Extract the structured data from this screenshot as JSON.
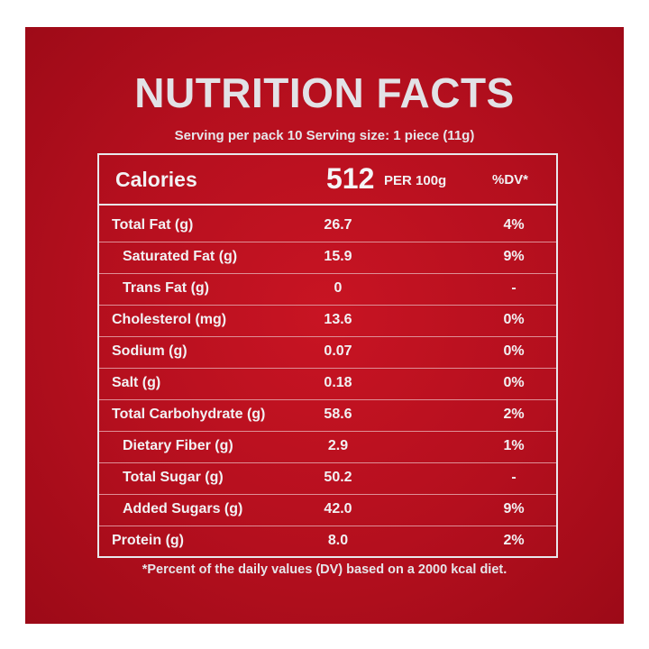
{
  "title": "NUTRITION FACTS",
  "serving": "Serving per pack 10 Serving size: 1 piece (11g)",
  "calories": {
    "label": "Calories",
    "value": "512",
    "unit": "PER 100g",
    "dv_header": "%DV*"
  },
  "rows": [
    {
      "name": "Total Fat (g)",
      "amount": "26.7",
      "dv": "4%"
    },
    {
      "name": "Saturated Fat (g)",
      "amount": "15.9",
      "dv": "9%"
    },
    {
      "name": "Trans Fat (g)",
      "amount": "0",
      "dv": "-"
    },
    {
      "name": "Cholesterol (mg)",
      "amount": "13.6",
      "dv": "0%"
    },
    {
      "name": "Sodium (g)",
      "amount": "0.07",
      "dv": "0%"
    },
    {
      "name": "Salt (g)",
      "amount": "0.18",
      "dv": "0%"
    },
    {
      "name": "Total Carbohydrate (g)",
      "amount": "58.6",
      "dv": "2%"
    },
    {
      "name": "Dietary Fiber (g)",
      "amount": "2.9",
      "dv": "1%"
    },
    {
      "name": "Total Sugar (g)",
      "amount": "50.2",
      "dv": "-"
    },
    {
      "name": "Added Sugars (g)",
      "amount": "42.0",
      "dv": "9%"
    },
    {
      "name": "Protein (g)",
      "amount": "8.0",
      "dv": "2%"
    }
  ],
  "footnote": "*Percent of the daily values (DV) based on a 2000 kcal diet.",
  "colors": {
    "background": "#b40f1e",
    "text": "#f2f2f4"
  }
}
